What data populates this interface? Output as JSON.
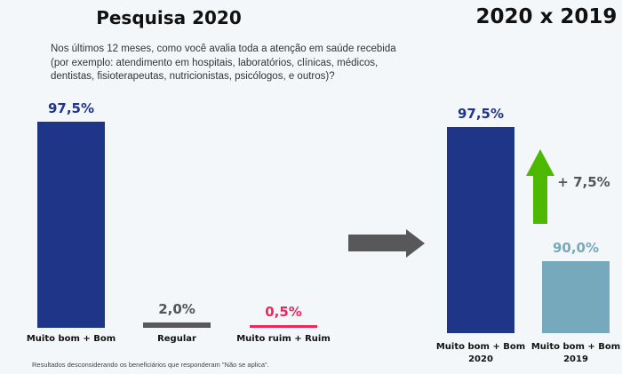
{
  "titles": {
    "left": "Pesquisa 2020",
    "right": "2020 x 2019"
  },
  "question": "Nos últimos 12 meses, como você avalia toda a atenção em saúde recebida (por exemplo: atendimento em hospitais, laboratórios, clínicas, médicos, dentistas, fisioterapeutas, nutricionistas, psicólogos, e outros)?",
  "footnote": "Resultados desconsiderando os beneficiários que responderam \"Não se aplica\".",
  "chart_data": [
    {
      "type": "bar",
      "title": "Pesquisa 2020",
      "categories": [
        "Muito bom + Bom",
        "Regular",
        "Muito ruim + Ruim"
      ],
      "values": [
        97.5,
        2.0,
        0.5
      ],
      "labels": [
        "97,5%",
        "2,0%",
        "0,5%"
      ],
      "colors": [
        "#1f3587",
        "#58585a",
        "#f0285a"
      ]
    },
    {
      "type": "bar",
      "title": "2020 x 2019",
      "categories": [
        "Muito bom + Bom 2020",
        "Muito bom + Bom 2019"
      ],
      "category_lines": [
        [
          "Muito bom + Bom",
          "2020"
        ],
        [
          "Muito bom + Bom",
          "2019"
        ]
      ],
      "values": [
        97.5,
        90.0
      ],
      "labels": [
        "97,5%",
        "90,0%"
      ],
      "colors": [
        "#1f3587",
        "#77a9bc"
      ],
      "annotation": "+ 7,5%",
      "annotation_color": "#4cb800"
    }
  ]
}
